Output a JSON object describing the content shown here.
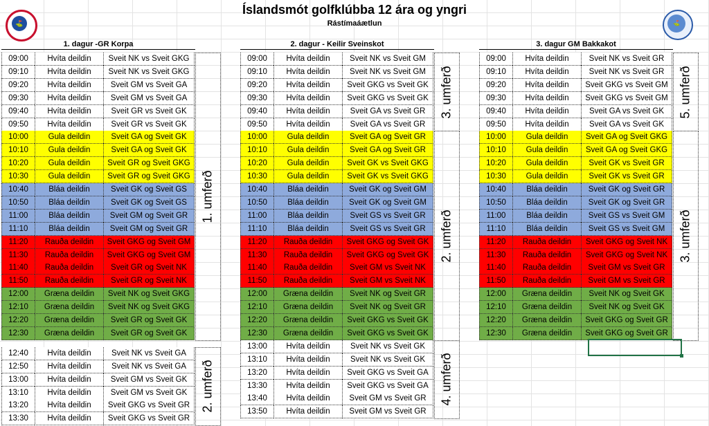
{
  "title": "Íslandsmót golfklúbba 12 ára og yngri",
  "subtitle": "Rástímaáætlun",
  "colors": {
    "white": "#ffffff",
    "yellow": "#ffff00",
    "blue": "#8eaadc",
    "red": "#ff0000",
    "green": "#70ad47"
  },
  "days": [
    {
      "heading": "1. dagur -GR Korpa",
      "blocks": [
        {
          "label": "1. umferð",
          "rows": [
            {
              "time": "09:00",
              "division": "Hvíta deildin",
              "match": "Sveit NK vs Sveit GKG",
              "color": "white"
            },
            {
              "time": "09:10",
              "division": "Hvíta deildin",
              "match": "Sveit NK vs Sveit GKG",
              "color": "white"
            },
            {
              "time": "09:20",
              "division": "Hvíta deildin",
              "match": "Sveit GM vs Sveit GA",
              "color": "white"
            },
            {
              "time": "09:30",
              "division": "Hvíta deildin",
              "match": "Sveit GM vs Sveit GA",
              "color": "white"
            },
            {
              "time": "09:40",
              "division": "Hvíta deildin",
              "match": "Sveit GR vs Sveit GK",
              "color": "white"
            },
            {
              "time": "09:50",
              "division": "Hvíta deildin",
              "match": "Sveit GR vs Sveit GK",
              "color": "white"
            },
            {
              "time": "10:00",
              "division": "Gula deildin",
              "match": "Sveit GA og Sveit GK",
              "color": "yellow"
            },
            {
              "time": "10:10",
              "division": "Gula deildin",
              "match": "Sveit GA og Sveit GK",
              "color": "yellow"
            },
            {
              "time": "10:20",
              "division": "Gula deildin",
              "match": "Sveit GR og Sveit GKG",
              "color": "yellow"
            },
            {
              "time": "10:30",
              "division": "Gula deildin",
              "match": "Sveit GR og Sveit GKG",
              "color": "yellow"
            },
            {
              "time": "10:40",
              "division": "Bláa deildin",
              "match": "Sveit GK og Sveit GS",
              "color": "blue"
            },
            {
              "time": "10:50",
              "division": "Bláa deildin",
              "match": "Sveit GK og Sveit GS",
              "color": "blue"
            },
            {
              "time": "11:00",
              "division": "Bláa deildin",
              "match": "Sveit GM og Sveit GR",
              "color": "blue"
            },
            {
              "time": "11:10",
              "division": "Bláa deildin",
              "match": "Sveit GM og Sveit GR",
              "color": "blue"
            },
            {
              "time": "11:20",
              "division": "Rauða deildin",
              "match": "Sveit GKG og Sveit GM",
              "color": "red"
            },
            {
              "time": "11:30",
              "division": "Rauða deildin",
              "match": "Sveit GKG og Sveit GM",
              "color": "red"
            },
            {
              "time": "11:40",
              "division": "Rauða deildin",
              "match": "Sveit GR og Sveit NK",
              "color": "red"
            },
            {
              "time": "11:50",
              "division": "Rauða deildin",
              "match": "Sveit GR og Sveit NK",
              "color": "red"
            },
            {
              "time": "12:00",
              "division": "Græna deildin",
              "match": "Sveit NK og Sveit GKG",
              "color": "green"
            },
            {
              "time": "12:10",
              "division": "Græna deildin",
              "match": "Sveit NK og Sveit GKG",
              "color": "green"
            },
            {
              "time": "12:20",
              "division": "Græna deildin",
              "match": "Sveit GR og Sveit GK",
              "color": "green"
            },
            {
              "time": "12:30",
              "division": "Græna deildin",
              "match": "Sveit GR og Sveit GK",
              "color": "green"
            }
          ]
        },
        {
          "label": "2. umferð",
          "rows": [
            {
              "time": "12:40",
              "division": "Hvíta deildin",
              "match": "Sveit NK vs Sveit GA",
              "color": "white"
            },
            {
              "time": "12:50",
              "division": "Hvíta deildin",
              "match": "Sveit NK vs Sveit GA",
              "color": "white"
            },
            {
              "time": "13:00",
              "division": "Hvíta deildin",
              "match": "Sveit GM vs Sveit GK",
              "color": "white"
            },
            {
              "time": "13:10",
              "division": "Hvíta deildin",
              "match": "Sveit GM vs Sveit GK",
              "color": "white"
            },
            {
              "time": "13:20",
              "division": "Hvíta deildin",
              "match": "Sveit GKG vs Sveit GR",
              "color": "white"
            },
            {
              "time": "13:30",
              "division": "Hvíta deildin",
              "match": "Sveit GKG vs Sveit GR",
              "color": "white"
            }
          ]
        }
      ]
    },
    {
      "heading": "2. dagur - Keilir Sveinskot",
      "blocks": [
        {
          "label": "3. umferð",
          "rows": [
            {
              "time": "09:00",
              "division": "Hvíta deildin",
              "match": "Sveit NK vs Sveit GM",
              "color": "white"
            },
            {
              "time": "09:10",
              "division": "Hvíta deildin",
              "match": "Sveit NK vs Sveit GM",
              "color": "white"
            },
            {
              "time": "09:20",
              "division": "Hvíta deildin",
              "match": "Sveit GKG vs Sveit GK",
              "color": "white"
            },
            {
              "time": "09:30",
              "division": "Hvíta deildin",
              "match": "Sveit GKG vs Sveit GK",
              "color": "white"
            },
            {
              "time": "09:40",
              "division": "Hvíta deildin",
              "match": "Sveit GA vs Sveit GR",
              "color": "white"
            },
            {
              "time": "09:50",
              "division": "Hvíta deildin",
              "match": "Sveit GA vs Sveit GR",
              "color": "white"
            }
          ]
        },
        {
          "label": "2. umferð",
          "rows": [
            {
              "time": "10:00",
              "division": "Gula deildin",
              "match": "Sveit GA og Sveit GR",
              "color": "yellow"
            },
            {
              "time": "10:10",
              "division": "Gula deildin",
              "match": "Sveit GA og Sveit GR",
              "color": "yellow"
            },
            {
              "time": "10:20",
              "division": "Gula deildin",
              "match": "Sveit GK vs Sveit GKG",
              "color": "yellow"
            },
            {
              "time": "10:30",
              "division": "Gula deildin",
              "match": "Sveit GK vs Sveit GKG",
              "color": "yellow"
            },
            {
              "time": "10:40",
              "division": "Bláa deildin",
              "match": "Sveit GK og Sveit GM",
              "color": "blue"
            },
            {
              "time": "10:50",
              "division": "Bláa deildin",
              "match": "Sveit GK og Sveit GM",
              "color": "blue"
            },
            {
              "time": "11:00",
              "division": "Bláa deildin",
              "match": "Sveit GS vs Sveit GR",
              "color": "blue"
            },
            {
              "time": "11:10",
              "division": "Bláa deildin",
              "match": "Sveit GS vs Sveit GR",
              "color": "blue"
            },
            {
              "time": "11:20",
              "division": "Rauða deildin",
              "match": "Sveit GKG og Sveit GK",
              "color": "red"
            },
            {
              "time": "11:30",
              "division": "Rauða deildin",
              "match": "Sveit GKG og Sveit GK",
              "color": "red"
            },
            {
              "time": "11:40",
              "division": "Rauða deildin",
              "match": "Sveit GM vs Sveit NK",
              "color": "red"
            },
            {
              "time": "11:50",
              "division": "Rauða deildin",
              "match": "Sveit GM vs Sveit NK",
              "color": "red"
            },
            {
              "time": "12:00",
              "division": "Græna deildin",
              "match": "Sveit NK og Sveit GR",
              "color": "green"
            },
            {
              "time": "12:10",
              "division": "Græna deildin",
              "match": "Sveit NK og Sveit GR",
              "color": "green"
            },
            {
              "time": "12:20",
              "division": "Græna deildin",
              "match": "Sveit GKG vs Sveit GK",
              "color": "green"
            },
            {
              "time": "12:30",
              "division": "Græna deildin",
              "match": "Sveit GKG vs Sveit GK",
              "color": "green"
            }
          ]
        },
        {
          "label": "4. umferð",
          "rows": [
            {
              "time": "13:00",
              "division": "Hvíta deildin",
              "match": "Sveit NK vs Sveit GK",
              "color": "white"
            },
            {
              "time": "13:10",
              "division": "Hvíta deildin",
              "match": "Sveit NK vs Sveit GK",
              "color": "white"
            },
            {
              "time": "13:20",
              "division": "Hvíta deildin",
              "match": "Sveit GKG vs Sveit GA",
              "color": "white"
            },
            {
              "time": "13:30",
              "division": "Hvíta deildin",
              "match": "Sveit GKG vs Sveit GA",
              "color": "white"
            },
            {
              "time": "13:40",
              "division": "Hvíta deildin",
              "match": "Sveit GM vs Sveit GR",
              "color": "white"
            },
            {
              "time": "13:50",
              "division": "Hvíta deildin",
              "match": "Sveit GM vs Sveit GR",
              "color": "white"
            }
          ]
        }
      ]
    },
    {
      "heading": "3. dagur GM Bakkakot",
      "blocks": [
        {
          "label": "5. umferð",
          "rows": [
            {
              "time": "09:00",
              "division": "Hvíta deildin",
              "match": "Sveit NK vs Sveit GR",
              "color": "white"
            },
            {
              "time": "09:10",
              "division": "Hvíta deildin",
              "match": "Sveit NK vs Sveit GR",
              "color": "white"
            },
            {
              "time": "09:20",
              "division": "Hvíta deildin",
              "match": "Sveit GKG vs Sveit GM",
              "color": "white"
            },
            {
              "time": "09:30",
              "division": "Hvíta deildin",
              "match": "Sveit GKG vs Sveit GM",
              "color": "white"
            },
            {
              "time": "09:40",
              "division": "Hvíta deildin",
              "match": "Sveit GA vs Sveit GK",
              "color": "white"
            },
            {
              "time": "09:50",
              "division": "Hvíta deildin",
              "match": "Sveit GA vs Sveit GK",
              "color": "white"
            }
          ]
        },
        {
          "label": "3. umferð",
          "rows": [
            {
              "time": "10:00",
              "division": "Gula deildin",
              "match": "Sveit GA og Sveit GKG",
              "color": "yellow"
            },
            {
              "time": "10:10",
              "division": "Gula deildin",
              "match": "Sveit GA og Sveit GKG",
              "color": "yellow"
            },
            {
              "time": "10:20",
              "division": "Gula deildin",
              "match": "Sveit GK vs Sveit GR",
              "color": "yellow"
            },
            {
              "time": "10:30",
              "division": "Gula deildin",
              "match": "Sveit GK vs Sveit GR",
              "color": "yellow"
            },
            {
              "time": "10:40",
              "division": "Bláa deildin",
              "match": "Sveit GK og Sveit GR",
              "color": "blue"
            },
            {
              "time": "10:50",
              "division": "Bláa deildin",
              "match": "Sveit GK og Sveit GR",
              "color": "blue"
            },
            {
              "time": "11:00",
              "division": "Bláa deildin",
              "match": "Sveit GS vs Sveit GM",
              "color": "blue"
            },
            {
              "time": "11:10",
              "division": "Bláa deildin",
              "match": "Sveit GS vs Sveit GM",
              "color": "blue"
            },
            {
              "time": "11:20",
              "division": "Rauða deildin",
              "match": "Sveit GKG og Sveit NK",
              "color": "red"
            },
            {
              "time": "11:30",
              "division": "Rauða deildin",
              "match": "Sveit GKG og Sveit NK",
              "color": "red"
            },
            {
              "time": "11:40",
              "division": "Rauða deildin",
              "match": "Sveit GM vs Sveit GR",
              "color": "red"
            },
            {
              "time": "11:50",
              "division": "Rauða deildin",
              "match": "Sveit GM vs Sveit GR",
              "color": "red"
            },
            {
              "time": "12:00",
              "division": "Græna deildin",
              "match": "Sveit NK og Sveit GK",
              "color": "green"
            },
            {
              "time": "12:10",
              "division": "Græna deildin",
              "match": "Sveit NK og Sveit GK",
              "color": "green"
            },
            {
              "time": "12:20",
              "division": "Græna deildin",
              "match": "Sveit GKG og Sveit GR",
              "color": "green"
            },
            {
              "time": "12:30",
              "division": "Græna deildin",
              "match": "Sveit GKG og Sveit GR",
              "color": "green"
            }
          ]
        }
      ]
    }
  ]
}
